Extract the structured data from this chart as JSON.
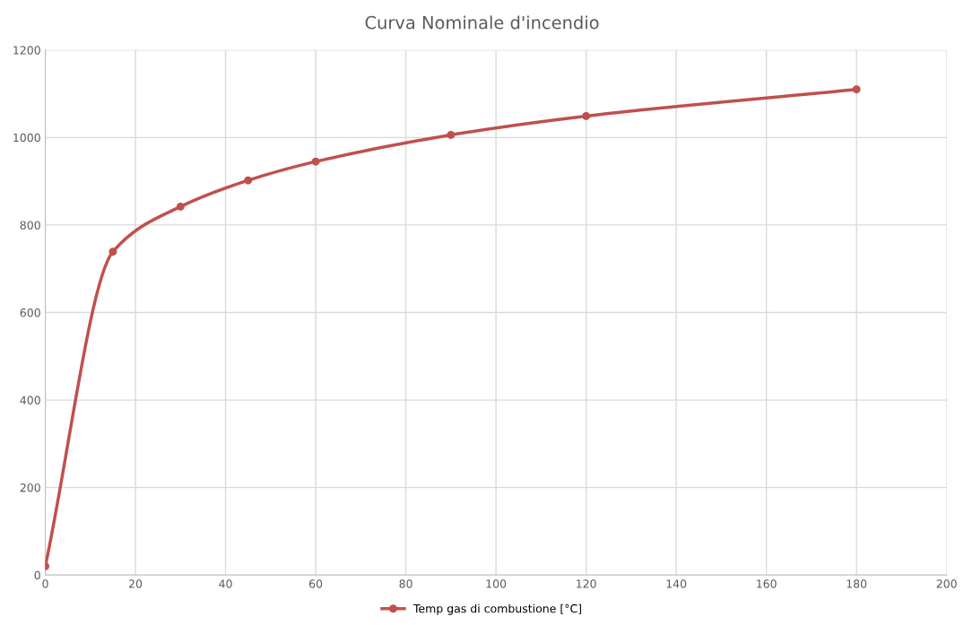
{
  "chart_data": {
    "type": "line",
    "title": "Curva Nominale d'incendio",
    "x": [
      0,
      15,
      30,
      45,
      60,
      90,
      120,
      180
    ],
    "series": [
      {
        "name": "Temp gas di combustione [°C]",
        "color": "#c0504d",
        "values": [
          20,
          739,
          842,
          902,
          945,
          1006,
          1049,
          1110
        ]
      }
    ],
    "xlim": [
      0,
      200
    ],
    "xticks": [
      0,
      20,
      40,
      60,
      80,
      100,
      120,
      140,
      160,
      180,
      200
    ],
    "ylim": [
      0,
      1200
    ],
    "yticks": [
      0,
      200,
      400,
      600,
      800,
      1000,
      1200
    ],
    "grid": true,
    "legend": "bottom",
    "marker": "circle",
    "line_style": "solid"
  }
}
